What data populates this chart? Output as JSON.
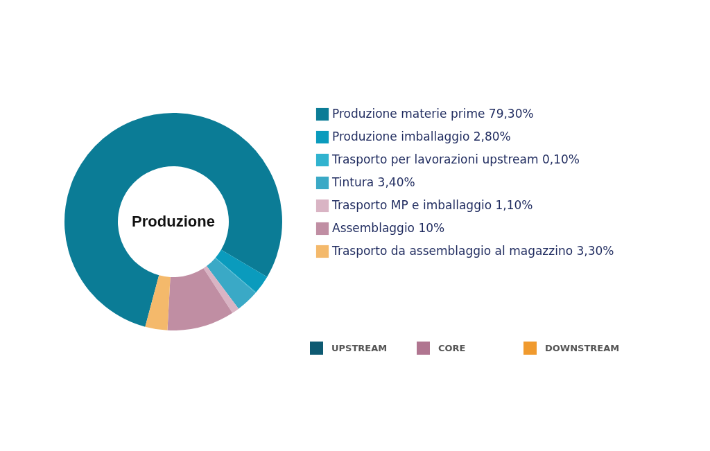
{
  "chart_data": {
    "type": "donut",
    "title": "Produzione",
    "categories": [
      "Produzione materie prime",
      "Produzione imballaggio",
      "Trasporto per lavorazioni upstream",
      "Tintura",
      "Trasporto MP e imballaggio",
      "Assemblaggio",
      "Trasporto da assemblaggio al magazzino"
    ],
    "values": [
      79.3,
      2.8,
      0.1,
      3.4,
      1.1,
      10,
      3.3
    ],
    "value_labels": [
      "79,30%",
      "2,80%",
      "0,10%",
      "3,40%",
      "1,10%",
      "10%",
      "3,30%"
    ],
    "colors": [
      "#0b7c96",
      "#0a9bbd",
      "#30b3cf",
      "#3aa9c6",
      "#d9b4c4",
      "#c08ea3",
      "#f4b96b"
    ],
    "legend": "right",
    "annotations": [
      "UPSTREAM",
      "CORE",
      "DOWNSTREAM"
    ]
  }
}
